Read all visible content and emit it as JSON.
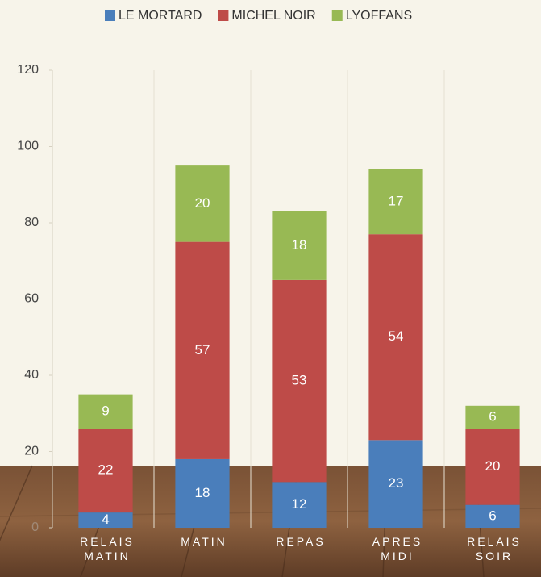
{
  "chart_data": {
    "type": "stacked_bar",
    "categories": [
      "RELAIS MATIN",
      "MATIN",
      "REPAS",
      "APRES MIDI",
      "RELAIS SOIR"
    ],
    "series": [
      {
        "name": "LE MORTARD",
        "color": "#4a7ebb",
        "values": [
          4,
          18,
          12,
          23,
          6
        ]
      },
      {
        "name": "MICHEL NOIR",
        "color": "#be4b48",
        "values": [
          22,
          57,
          53,
          54,
          20
        ]
      },
      {
        "name": "LYOFFANS",
        "color": "#98b954",
        "values": [
          9,
          20,
          18,
          17,
          6
        ]
      }
    ],
    "ylim": [
      0,
      120
    ],
    "yticks": [
      0,
      20,
      40,
      60,
      80,
      100,
      120
    ],
    "grid": false,
    "legend": "top"
  }
}
